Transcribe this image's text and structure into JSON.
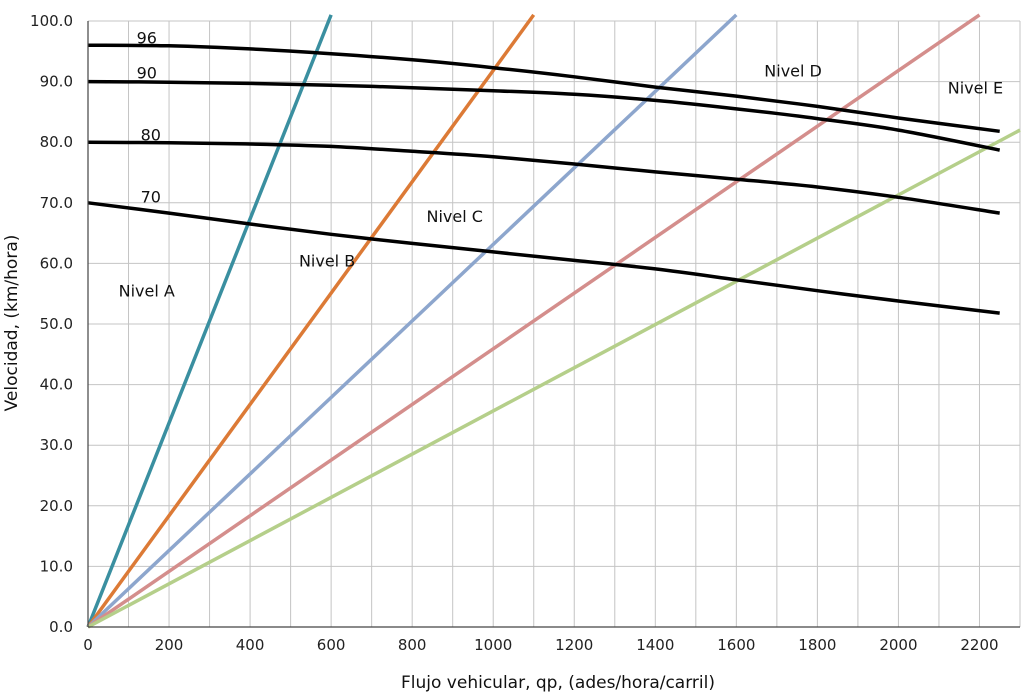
{
  "chart_data": {
    "type": "line",
    "title": "",
    "xlabel": "Flujo vehicular, qp, (ades/hora/carril)",
    "ylabel": "Velocidad,  (km/hora)",
    "xlim": [
      0,
      2300
    ],
    "ylim": [
      0,
      100
    ],
    "grid": true,
    "legend": "none",
    "x_ticks": [
      "0",
      "200",
      "400",
      "600",
      "800",
      "1000",
      "1200",
      "1400",
      "1600",
      "1800",
      "2000",
      "2200"
    ],
    "y_ticks": [
      "0.0",
      "10.0",
      "20.0",
      "30.0",
      "40.0",
      "50.0",
      "60.0",
      "70.0",
      "80.0",
      "90.0",
      "100.0"
    ],
    "speed_curves": [
      {
        "label": "96",
        "color": "#000000",
        "points": [
          [
            0,
            96
          ],
          [
            200,
            95.9
          ],
          [
            400,
            95.4
          ],
          [
            600,
            94.6
          ],
          [
            800,
            93.6
          ],
          [
            1000,
            92.3
          ],
          [
            1200,
            90.8
          ],
          [
            1400,
            89.1
          ],
          [
            1600,
            87.6
          ],
          [
            1800,
            85.9
          ],
          [
            2000,
            84.0
          ],
          [
            2250,
            81.8
          ]
        ]
      },
      {
        "label": "90",
        "color": "#000000",
        "points": [
          [
            0,
            90
          ],
          [
            200,
            89.9
          ],
          [
            400,
            89.7
          ],
          [
            600,
            89.4
          ],
          [
            800,
            89.0
          ],
          [
            1000,
            88.5
          ],
          [
            1200,
            87.9
          ],
          [
            1400,
            86.9
          ],
          [
            1600,
            85.5
          ],
          [
            1800,
            83.9
          ],
          [
            2000,
            82.0
          ],
          [
            2250,
            78.7
          ]
        ]
      },
      {
        "label": "80",
        "color": "#000000",
        "points": [
          [
            0,
            80
          ],
          [
            200,
            79.9
          ],
          [
            400,
            79.7
          ],
          [
            600,
            79.3
          ],
          [
            800,
            78.5
          ],
          [
            1000,
            77.6
          ],
          [
            1200,
            76.4
          ],
          [
            1400,
            75.1
          ],
          [
            1600,
            73.9
          ],
          [
            1800,
            72.6
          ],
          [
            2000,
            70.9
          ],
          [
            2250,
            68.3
          ]
        ]
      },
      {
        "label": "70",
        "color": "#000000",
        "points": [
          [
            0,
            70
          ],
          [
            200,
            68.3
          ],
          [
            400,
            66.5
          ],
          [
            600,
            64.8
          ],
          [
            800,
            63.3
          ],
          [
            1000,
            61.9
          ],
          [
            1200,
            60.5
          ],
          [
            1400,
            59.1
          ],
          [
            1600,
            57.3
          ],
          [
            1800,
            55.5
          ],
          [
            2000,
            53.8
          ],
          [
            2250,
            51.8
          ]
        ]
      }
    ],
    "level_boundaries": [
      {
        "color": "#3a8fa0",
        "points": [
          [
            0,
            0
          ],
          [
            600,
            101
          ]
        ]
      },
      {
        "color": "#dc7a36",
        "points": [
          [
            0,
            0
          ],
          [
            1100,
            101
          ]
        ]
      },
      {
        "color": "#8da6cd",
        "points": [
          [
            0,
            0
          ],
          [
            1600,
            101
          ]
        ]
      },
      {
        "color": "#d48e8c",
        "points": [
          [
            0,
            0
          ],
          [
            2200,
            101
          ]
        ]
      },
      {
        "color": "#b5cf8a",
        "points": [
          [
            0,
            0
          ],
          [
            2300,
            82
          ]
        ]
      }
    ],
    "annotations": [
      {
        "text": "Nivel A",
        "x": 145,
        "y": 55.5
      },
      {
        "text": "Nivel B",
        "x": 590,
        "y": 60.5
      },
      {
        "text": "Nivel C",
        "x": 905,
        "y": 67.8
      },
      {
        "text": "Nivel D",
        "x": 1740,
        "y": 91.8
      },
      {
        "text": "Nivel E",
        "x": 2190,
        "y": 89.0
      }
    ],
    "line_labels": [
      {
        "text": "96",
        "x": 145,
        "y": 97.3
      },
      {
        "text": "90",
        "x": 145,
        "y": 91.5
      },
      {
        "text": "80",
        "x": 155,
        "y": 81.3
      },
      {
        "text": "70",
        "x": 155,
        "y": 71.0
      }
    ]
  }
}
